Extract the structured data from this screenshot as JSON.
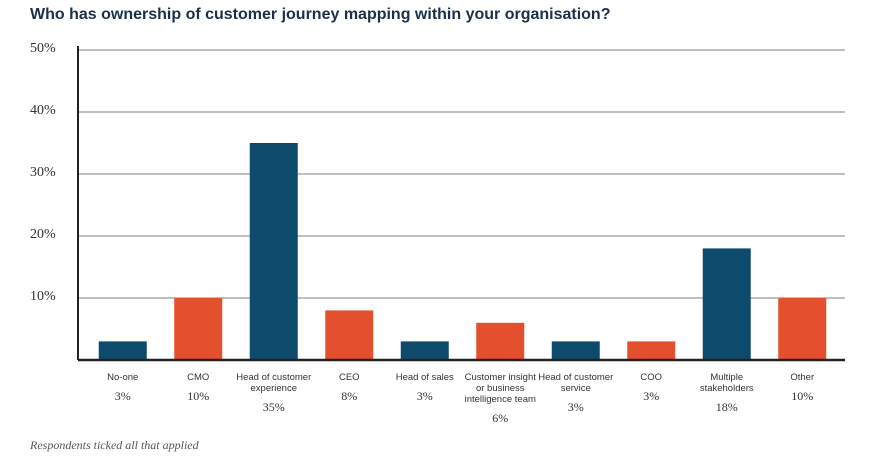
{
  "chart_data": {
    "type": "bar",
    "title": "Who has ownership of customer journey mapping within your organisation?",
    "categories": [
      "No-one",
      "CMO",
      "Head of customer experience",
      "CEO",
      "Head of sales",
      "Customer insight or business intelligence team",
      "Head of customer service",
      "COO",
      "Multiple stakeholders",
      "Other"
    ],
    "values": [
      3,
      10,
      35,
      8,
      3,
      6,
      3,
      3,
      18,
      10
    ],
    "value_labels": [
      "3%",
      "10%",
      "35%",
      "8%",
      "3%",
      "6%",
      "3%",
      "3%",
      "18%",
      "10%"
    ],
    "colors": [
      "#0d4a6b",
      "#e4502d",
      "#0d4a6b",
      "#e4502d",
      "#0d4a6b",
      "#e4502d",
      "#0d4a6b",
      "#e4502d",
      "#0d4a6b",
      "#e4502d"
    ],
    "ylim": [
      0,
      50
    ],
    "yticks": [
      {
        "value": 10,
        "label": "10%"
      },
      {
        "value": 20,
        "label": "20%"
      },
      {
        "value": 30,
        "label": "30%"
      },
      {
        "value": 40,
        "label": "40%"
      },
      {
        "value": 50,
        "label": "50%"
      }
    ],
    "grid": true,
    "note": "Respondents ticked all that applied"
  }
}
